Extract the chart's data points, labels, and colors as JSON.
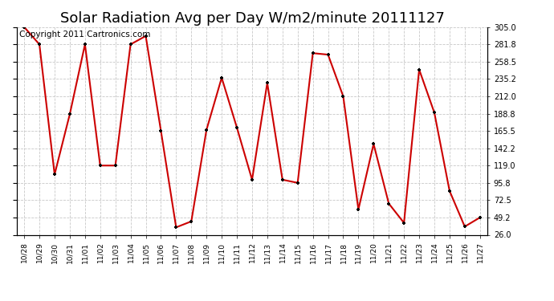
{
  "title": "Solar Radiation Avg per Day W/m2/minute 20111127",
  "copyright_text": "Copyright 2011 Cartronics.com",
  "x_labels": [
    "10/28",
    "10/29",
    "10/30",
    "10/31",
    "11/01",
    "11/02",
    "11/03",
    "11/04",
    "11/05",
    "11/06",
    "11/07",
    "11/08",
    "11/09",
    "11/10",
    "11/11",
    "11/12",
    "11/13",
    "11/14",
    "11/15",
    "11/16",
    "11/17",
    "11/18",
    "11/19",
    "11/20",
    "11/21",
    "11/22",
    "11/23",
    "11/24",
    "11/25",
    "11/26",
    "11/27"
  ],
  "y_values": [
    305.0,
    281.8,
    107.0,
    188.0,
    281.8,
    119.0,
    119.0,
    281.8,
    293.0,
    165.5,
    36.0,
    44.0,
    167.0,
    237.0,
    170.0,
    100.0,
    230.0,
    100.0,
    95.8,
    270.0,
    268.0,
    212.0,
    60.0,
    148.0,
    68.0,
    42.0,
    248.0,
    190.0,
    85.0,
    37.0,
    49.2
  ],
  "line_color": "#cc0000",
  "marker_color": "#000000",
  "bg_color": "#ffffff",
  "grid_color": "#c8c8c8",
  "ylim": [
    26.0,
    305.0
  ],
  "yticks": [
    26.0,
    49.2,
    72.5,
    95.8,
    119.0,
    142.2,
    165.5,
    188.8,
    212.0,
    235.2,
    258.5,
    281.8,
    305.0
  ],
  "title_fontsize": 13,
  "copyright_fontsize": 7.5
}
